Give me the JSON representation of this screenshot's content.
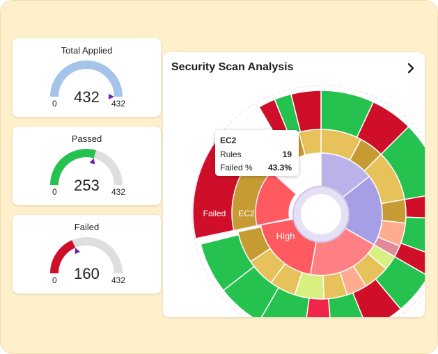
{
  "gauges": [
    {
      "title": "Total Applied",
      "value": "432",
      "min": "0",
      "max": "432",
      "fraction": 1.0,
      "marker": 1.0,
      "color": "#a5c4ea"
    },
    {
      "title": "Passed",
      "value": "253",
      "min": "0",
      "max": "432",
      "fraction": 0.586,
      "marker": 0.586,
      "color": "#26c24f"
    },
    {
      "title": "Failed",
      "value": "160",
      "min": "0",
      "max": "432",
      "fraction": 0.37,
      "marker": 0.37,
      "color": "#cf0e2a"
    }
  ],
  "panel": {
    "title": "Security Scan Analysis",
    "chevron_icon": "chevron-right-icon"
  },
  "sunburst": {
    "labels": {
      "failed": "Failed",
      "ec2": "EC2",
      "high": "High"
    }
  },
  "tooltip": {
    "title": "EC2",
    "rows": [
      {
        "key": "Rules",
        "value": "19"
      },
      {
        "key": "Failed %",
        "value": "43.3%"
      }
    ]
  },
  "colors": {
    "frame_bg": "#fdf0cb",
    "green": "#26c24f",
    "red": "#cf0e2a",
    "gold": "#c79b33",
    "sand": "#e7c159",
    "coral": "#ff5a5f",
    "lavender": "#b9b3e9",
    "gauge_track": "#dedede"
  }
}
